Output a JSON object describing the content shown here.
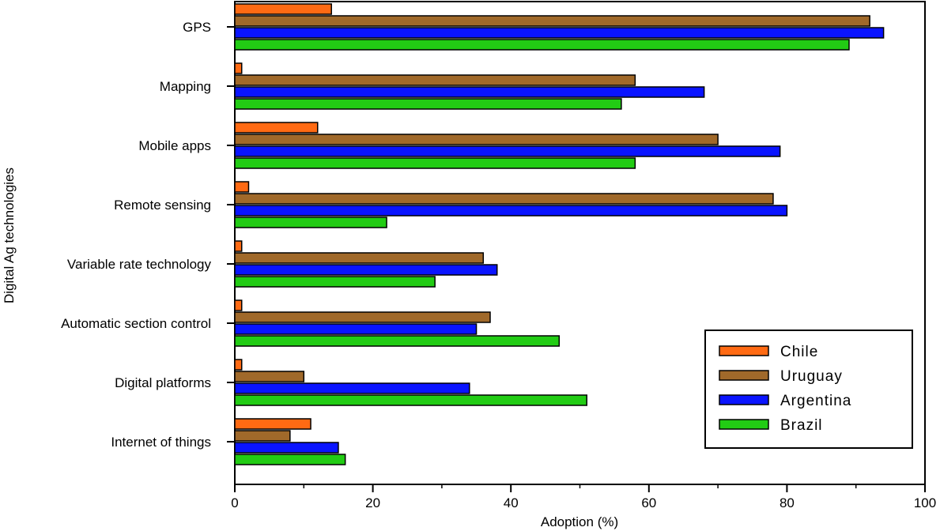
{
  "chart_data": {
    "type": "bar",
    "orientation": "horizontal",
    "title": "",
    "xlabel": "Adoption (%)",
    "ylabel": "Digital Ag technologies",
    "xlim": [
      0,
      100
    ],
    "xticks": [
      "0",
      "20",
      "40",
      "60",
      "80",
      "100"
    ],
    "grid": false,
    "legend_position": "bottom-right",
    "categories": [
      "GPS",
      "Mapping",
      "Mobile apps",
      "Remote sensing",
      "Variable rate technology",
      "Automatic section control",
      "Digital platforms",
      "Internet of things"
    ],
    "series": [
      {
        "name": "Chile",
        "color": "#ff6a13",
        "values": [
          14,
          1,
          12,
          2,
          1,
          1,
          1,
          11
        ]
      },
      {
        "name": "Uruguay",
        "color": "#a0692a",
        "values": [
          92,
          58,
          70,
          78,
          36,
          37,
          10,
          8
        ]
      },
      {
        "name": "Argentina",
        "color": "#0a14ff",
        "values": [
          94,
          68,
          79,
          80,
          38,
          35,
          34,
          15
        ]
      },
      {
        "name": "Brazil",
        "color": "#22cc14",
        "values": [
          89,
          56,
          58,
          22,
          29,
          47,
          51,
          16
        ]
      }
    ]
  }
}
